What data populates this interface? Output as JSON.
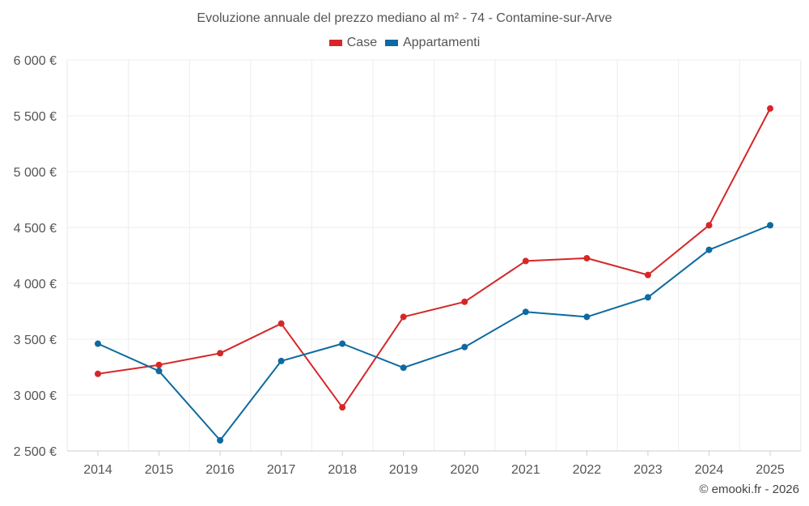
{
  "chart_data": {
    "type": "line",
    "title": "Evoluzione annuale del prezzo mediano al m² - 74 - Contamine-sur-Arve",
    "xlabel": "",
    "ylabel": "",
    "categories": [
      "2014",
      "2015",
      "2016",
      "2017",
      "2018",
      "2019",
      "2020",
      "2021",
      "2022",
      "2023",
      "2024",
      "2025"
    ],
    "ylim": [
      2500,
      6000
    ],
    "yticks": [
      2500,
      3000,
      3500,
      4000,
      4500,
      5000,
      5500,
      6000
    ],
    "ytick_labels": [
      "2 500 €",
      "3 000 €",
      "3 500 €",
      "4 000 €",
      "4 500 €",
      "5 000 €",
      "5 500 €",
      "6 000 €"
    ],
    "grid": true,
    "legend_position": "top-center",
    "series": [
      {
        "name": "Case",
        "color": "#d62728",
        "values": [
          3190,
          3270,
          3375,
          3640,
          2890,
          3700,
          3835,
          4200,
          4225,
          4075,
          4520,
          5565
        ]
      },
      {
        "name": "Appartamenti",
        "color": "#0e6aa0",
        "values": [
          3460,
          3215,
          2595,
          3305,
          3460,
          3245,
          3430,
          3745,
          3700,
          3875,
          4300,
          4520
        ]
      }
    ]
  },
  "credit": "© emooki.fr - 2026"
}
